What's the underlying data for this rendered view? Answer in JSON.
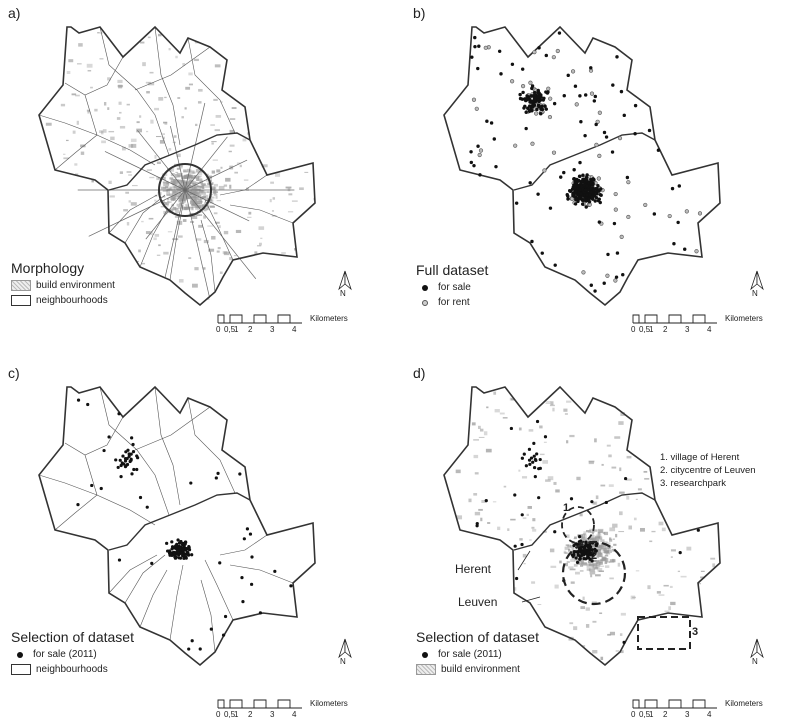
{
  "panels": {
    "a": {
      "letter": "a)",
      "legend_title": "Morphology",
      "legend_items": [
        "build environment",
        "neighbourhoods"
      ]
    },
    "b": {
      "letter": "b)",
      "legend_title": "Full dataset",
      "legend_items": [
        "for sale",
        "for rent"
      ]
    },
    "c": {
      "letter": "c)",
      "legend_title": "Selection of dataset",
      "legend_items": [
        "for sale (2011)",
        "neighbourhoods"
      ]
    },
    "d": {
      "letter": "d)",
      "legend_title": "Selection of dataset",
      "legend_items": [
        "for sale (2011)",
        "build environment"
      ],
      "place_labels": [
        "Herent",
        "Leuven"
      ],
      "area_list": [
        "1. village of Herent",
        "2. citycentre of Leuven",
        "3. researchpark"
      ],
      "area_numbers": [
        "1",
        "2",
        "3"
      ]
    }
  },
  "north_label": "N",
  "scalebar": {
    "ticks": [
      "0",
      "0,5",
      "1",
      "2",
      "3",
      "4"
    ],
    "unit": "Kilometers"
  },
  "colors": {
    "boundary": "#333333",
    "sale_dot": "#111111",
    "rent_dot": "#bbbbbb",
    "build": "#999999"
  },
  "icons": {
    "north_arrow": "north-arrow-icon"
  }
}
